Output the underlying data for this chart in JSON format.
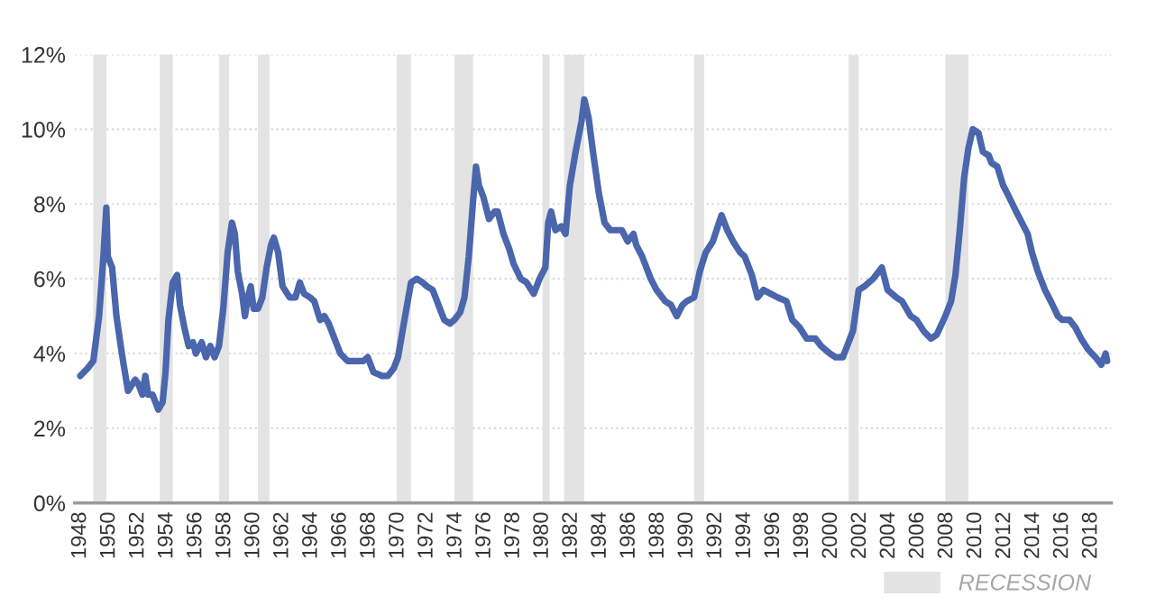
{
  "chart_data": {
    "type": "line",
    "x": [
      1948.0,
      1948.5,
      1948.9,
      1949.3,
      1949.6,
      1949.8,
      1949.9,
      1950.2,
      1950.5,
      1950.8,
      1951.0,
      1951.3,
      1951.8,
      1952.0,
      1952.3,
      1952.5,
      1952.7,
      1953.0,
      1953.4,
      1953.7,
      1953.9,
      1954.1,
      1954.4,
      1954.7,
      1954.9,
      1955.2,
      1955.5,
      1955.8,
      1956.0,
      1956.4,
      1956.7,
      1957.0,
      1957.3,
      1957.6,
      1957.9,
      1958.2,
      1958.5,
      1958.7,
      1958.9,
      1959.2,
      1959.4,
      1959.6,
      1959.8,
      1960.0,
      1960.3,
      1960.6,
      1960.9,
      1961.2,
      1961.4,
      1961.7,
      1962.0,
      1962.5,
      1962.9,
      1963.2,
      1963.5,
      1963.9,
      1964.2,
      1964.6,
      1964.9,
      1965.2,
      1965.6,
      1966.0,
      1966.5,
      1966.9,
      1967.3,
      1967.6,
      1967.9,
      1968.3,
      1968.9,
      1969.3,
      1969.7,
      1970.0,
      1970.4,
      1970.9,
      1971.3,
      1971.7,
      1972.0,
      1972.4,
      1972.8,
      1973.2,
      1973.6,
      1973.9,
      1974.3,
      1974.6,
      1974.9,
      1975.2,
      1975.4,
      1975.6,
      1975.9,
      1976.3,
      1976.7,
      1976.9,
      1977.3,
      1977.7,
      1978.0,
      1978.5,
      1978.9,
      1979.4,
      1979.8,
      1980.2,
      1980.4,
      1980.6,
      1980.9,
      1981.3,
      1981.6,
      1981.9,
      1982.3,
      1982.7,
      1982.9,
      1983.2,
      1983.5,
      1983.9,
      1984.3,
      1984.7,
      1985.0,
      1985.5,
      1985.9,
      1986.3,
      1986.5,
      1986.9,
      1987.5,
      1987.9,
      1988.5,
      1988.9,
      1989.3,
      1989.7,
      1990.0,
      1990.5,
      1990.9,
      1991.3,
      1991.8,
      1992.4,
      1992.8,
      1993.2,
      1993.7,
      1994.0,
      1994.5,
      1994.9,
      1995.3,
      1995.8,
      1996.3,
      1996.9,
      1997.3,
      1997.8,
      1998.3,
      1998.9,
      1999.3,
      1999.9,
      2000.3,
      2000.8,
      2001.1,
      2001.5,
      2001.9,
      2002.3,
      2002.9,
      2003.5,
      2003.9,
      2004.5,
      2004.9,
      2005.5,
      2005.9,
      2006.4,
      2006.9,
      2007.3,
      2007.9,
      2008.3,
      2008.6,
      2008.9,
      2009.2,
      2009.5,
      2009.8,
      2010.2,
      2010.5,
      2010.9,
      2011.1,
      2011.5,
      2011.9,
      2012.3,
      2012.8,
      2013.2,
      2013.6,
      2013.9,
      2014.3,
      2014.8,
      2015.2,
      2015.7,
      2016.0,
      2016.5,
      2016.9,
      2017.3,
      2017.8,
      2018.3,
      2018.7,
      2019.0,
      2019.1
    ],
    "series": [
      {
        "color": "#4a66ac",
        "values": [
          3.4,
          3.6,
          3.8,
          5.0,
          6.6,
          7.9,
          6.6,
          6.3,
          5.0,
          4.2,
          3.7,
          3.0,
          3.3,
          3.2,
          2.9,
          3.4,
          2.9,
          2.9,
          2.5,
          2.7,
          3.5,
          4.9,
          5.9,
          6.1,
          5.3,
          4.7,
          4.2,
          4.3,
          4.0,
          4.3,
          3.9,
          4.2,
          3.9,
          4.2,
          5.2,
          6.7,
          7.5,
          7.2,
          6.2,
          5.6,
          5.0,
          5.5,
          5.8,
          5.2,
          5.2,
          5.5,
          6.3,
          6.9,
          7.1,
          6.7,
          5.8,
          5.5,
          5.5,
          5.9,
          5.6,
          5.5,
          5.4,
          4.9,
          5.0,
          4.8,
          4.4,
          4.0,
          3.8,
          3.8,
          3.8,
          3.8,
          3.9,
          3.5,
          3.4,
          3.4,
          3.6,
          3.9,
          4.8,
          5.9,
          6.0,
          5.9,
          5.8,
          5.7,
          5.3,
          4.9,
          4.8,
          4.9,
          5.1,
          5.5,
          6.6,
          8.1,
          9.0,
          8.5,
          8.2,
          7.6,
          7.8,
          7.8,
          7.2,
          6.8,
          6.4,
          6.0,
          5.9,
          5.6,
          6.0,
          6.3,
          7.5,
          7.8,
          7.3,
          7.4,
          7.2,
          8.5,
          9.4,
          10.2,
          10.8,
          10.3,
          9.4,
          8.3,
          7.5,
          7.3,
          7.3,
          7.3,
          7.0,
          7.2,
          6.9,
          6.6,
          6.0,
          5.7,
          5.4,
          5.3,
          5.0,
          5.3,
          5.4,
          5.5,
          6.2,
          6.7,
          7.0,
          7.7,
          7.3,
          7.0,
          6.7,
          6.6,
          6.1,
          5.5,
          5.7,
          5.6,
          5.5,
          5.4,
          4.9,
          4.7,
          4.4,
          4.4,
          4.2,
          4.0,
          3.9,
          3.9,
          4.2,
          4.6,
          5.7,
          5.8,
          6.0,
          6.3,
          5.7,
          5.5,
          5.4,
          5.0,
          4.9,
          4.6,
          4.4,
          4.5,
          5.0,
          5.4,
          6.1,
          7.3,
          8.7,
          9.5,
          10.0,
          9.9,
          9.4,
          9.3,
          9.1,
          9.0,
          8.5,
          8.2,
          7.8,
          7.5,
          7.2,
          6.7,
          6.2,
          5.7,
          5.4,
          5.0,
          4.9,
          4.9,
          4.7,
          4.4,
          4.1,
          3.9,
          3.7,
          4.0,
          3.8
        ]
      }
    ],
    "xlim": [
      1947.6,
      2019.4
    ],
    "xticks": [
      1948,
      1950,
      1952,
      1954,
      1956,
      1958,
      1960,
      1962,
      1964,
      1966,
      1968,
      1970,
      1972,
      1974,
      1976,
      1978,
      1980,
      1982,
      1984,
      1986,
      1988,
      1990,
      1992,
      1994,
      1996,
      1998,
      2000,
      2002,
      2004,
      2006,
      2008,
      2010,
      2012,
      2014,
      2016,
      2018
    ],
    "ylim": [
      0,
      12
    ],
    "yticks": [
      {
        "value": 0,
        "label": "0%"
      },
      {
        "value": 2,
        "label": "2%"
      },
      {
        "value": 4,
        "label": "4%"
      },
      {
        "value": 6,
        "label": "6%"
      },
      {
        "value": 8,
        "label": "8%"
      },
      {
        "value": 10,
        "label": "10%"
      },
      {
        "value": 12,
        "label": "12%"
      }
    ],
    "grid": "y",
    "legend": "bottom right",
    "line_style": "solid",
    "bands": [
      {
        "axis": "x",
        "from": 1948.9,
        "to": 1949.8,
        "label": "RECESSION",
        "color": "#e3e3e3"
      },
      {
        "axis": "x",
        "from": 1953.5,
        "to": 1954.4,
        "color": "#e3e3e3"
      },
      {
        "axis": "x",
        "from": 1957.6,
        "to": 1958.3,
        "color": "#e3e3e3"
      },
      {
        "axis": "x",
        "from": 1960.3,
        "to": 1961.1,
        "color": "#e3e3e3"
      },
      {
        "axis": "x",
        "from": 1969.9,
        "to": 1970.9,
        "color": "#e3e3e3"
      },
      {
        "axis": "x",
        "from": 1973.9,
        "to": 1975.2,
        "color": "#e3e3e3"
      },
      {
        "axis": "x",
        "from": 1980.0,
        "to": 1980.5,
        "color": "#e3e3e3"
      },
      {
        "axis": "x",
        "from": 1981.5,
        "to": 1982.9,
        "color": "#e3e3e3"
      },
      {
        "axis": "x",
        "from": 1990.5,
        "to": 1991.2,
        "color": "#e3e3e3"
      },
      {
        "axis": "x",
        "from": 2001.2,
        "to": 2001.9,
        "color": "#e3e3e3"
      },
      {
        "axis": "x",
        "from": 2007.9,
        "to": 2009.5,
        "color": "#e3e3e3"
      }
    ]
  }
}
